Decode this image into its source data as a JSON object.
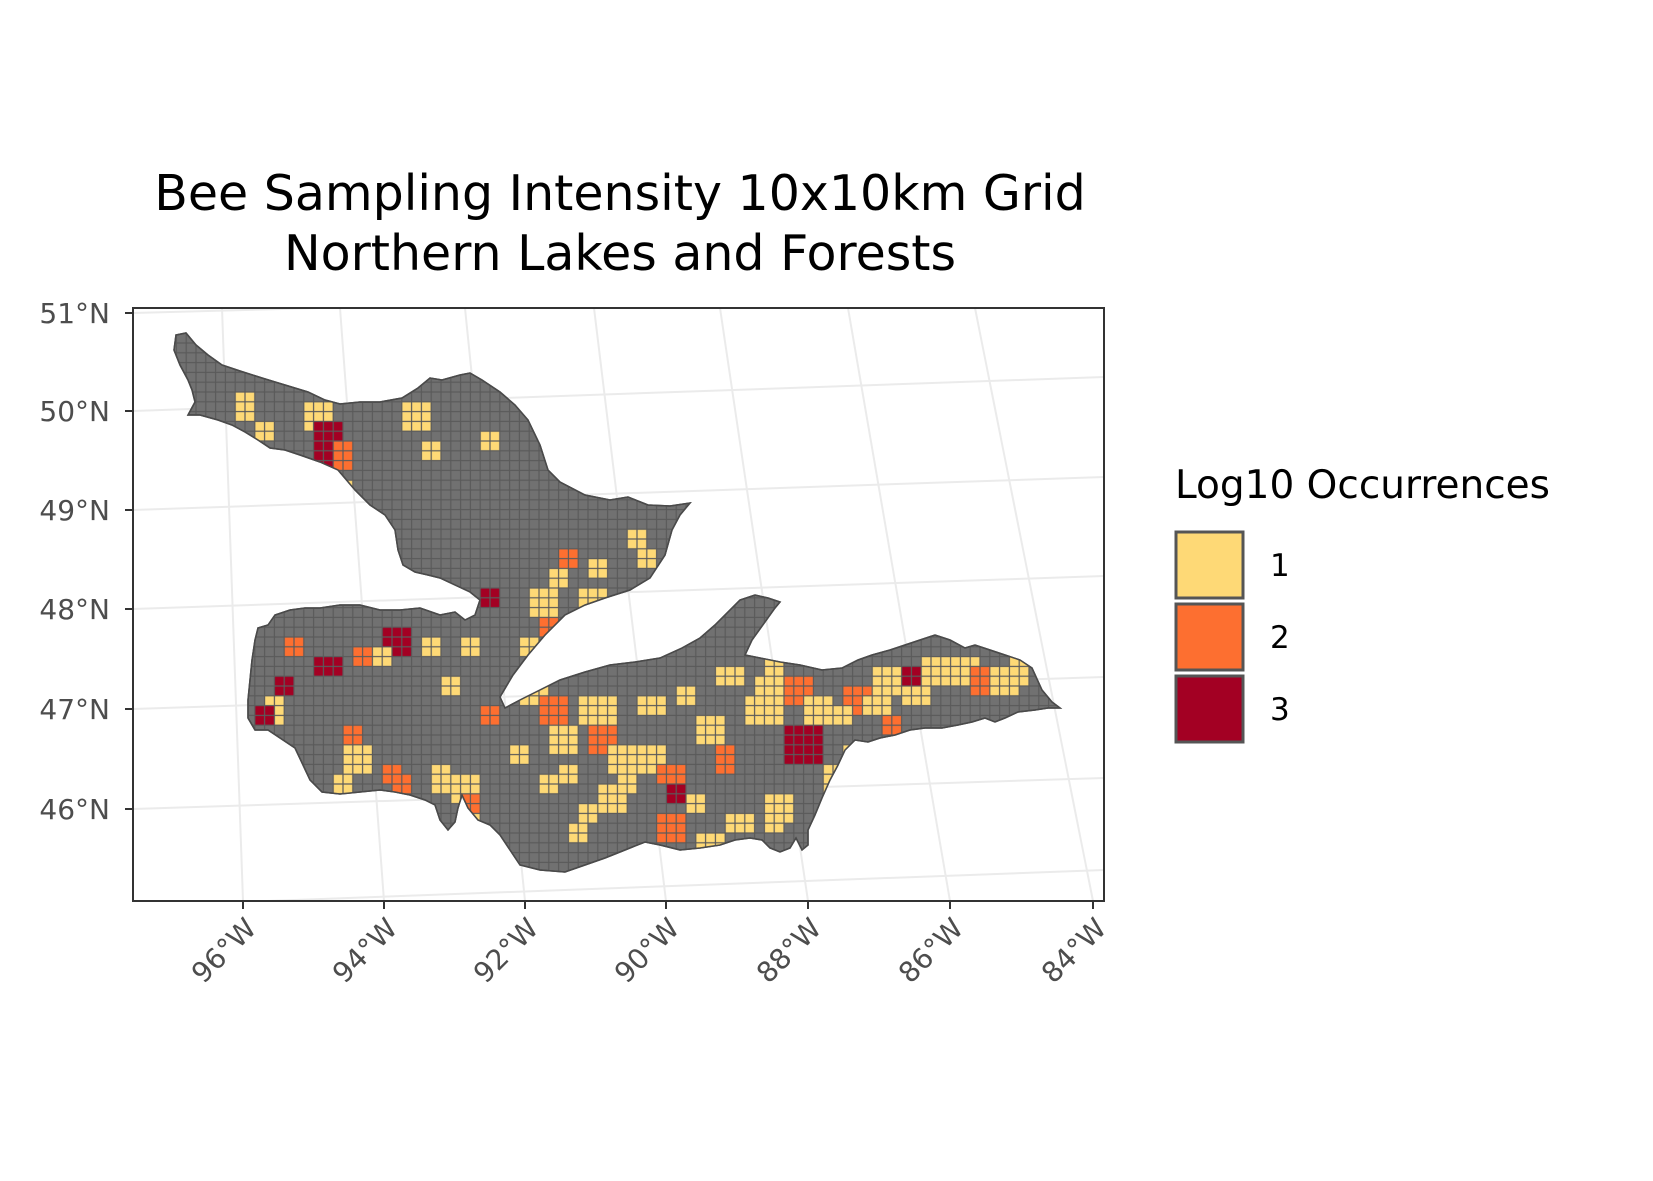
{
  "title": {
    "line1": "Bee Sampling Intensity 10x10km Grid",
    "line2": "Northern Lakes and Forests"
  },
  "axes": {
    "latitude_ticks": [
      "51°N",
      "50°N",
      "49°N",
      "48°N",
      "47°N",
      "46°N"
    ],
    "longitude_ticks": [
      "96°W",
      "94°W",
      "92°W",
      "90°W",
      "88°W",
      "86°W",
      "84°W"
    ],
    "grid": true
  },
  "legend": {
    "title": "Log10 Occurrences",
    "placement": "right",
    "entries": [
      {
        "label": "1",
        "color": "#FED976"
      },
      {
        "label": "2",
        "color": "#FD6F30"
      },
      {
        "label": "3",
        "color": "#A30023"
      }
    ]
  },
  "colors": {
    "land_unsampled": "#717171",
    "grid_lines": "#ebebeb",
    "panel_border": "#333333",
    "cell_border": "#5a5a5a"
  }
}
